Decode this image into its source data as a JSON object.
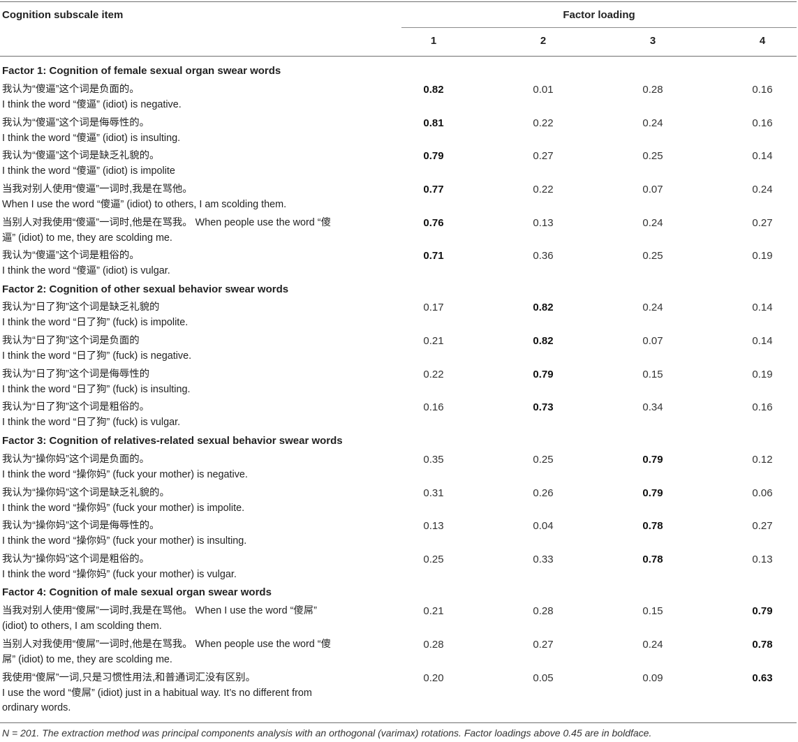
{
  "header": {
    "item_col": "Cognition subscale item",
    "loading_col": "Factor loading",
    "factor_numbers": [
      "1",
      "2",
      "3",
      "4"
    ]
  },
  "groups": [
    {
      "title": "Factor 1: Cognition of female sexual organ swear words",
      "rows": [
        {
          "lines": [
            "我认为“傻逼”这个词是负面的。",
            "I think the word “傻逼” (idiot) is negative."
          ],
          "values": [
            "0.82",
            "0.01",
            "0.28",
            "0.16"
          ],
          "bold": 0
        },
        {
          "lines": [
            "我认为“傻逼”这个词是侮辱性的。",
            "I think the word “傻逼” (idiot) is insulting."
          ],
          "values": [
            "0.81",
            "0.22",
            "0.24",
            "0.16"
          ],
          "bold": 0
        },
        {
          "lines": [
            "我认为“傻逼”这个词是缺乏礼貌的。",
            "I think the word “傻逼” (idiot) is impolite"
          ],
          "values": [
            "0.79",
            "0.27",
            "0.25",
            "0.14"
          ],
          "bold": 0
        },
        {
          "lines": [
            "当我对别人使用“傻逼”一词时,我是在骂他。",
            "When I use the word “傻逼” (idiot) to others, I am scolding them."
          ],
          "values": [
            "0.77",
            "0.22",
            "0.07",
            "0.24"
          ],
          "bold": 0
        },
        {
          "lines": [
            "当别人对我使用“傻逼”一词时,他是在骂我。 When people use the word “傻",
            "逼” (idiot) to me, they are scolding me."
          ],
          "values": [
            "0.76",
            "0.13",
            "0.24",
            "0.27"
          ],
          "bold": 0
        },
        {
          "lines": [
            "我认为“傻逼”这个词是粗俗的。",
            "I think the word “傻逼” (idiot) is vulgar."
          ],
          "values": [
            "0.71",
            "0.36",
            "0.25",
            "0.19"
          ],
          "bold": 0
        }
      ]
    },
    {
      "title": "Factor 2: Cognition of other sexual behavior swear words",
      "rows": [
        {
          "lines": [
            "我认为“日了狗”这个词是缺乏礼貌的",
            "I think the word “日了狗” (fuck) is impolite."
          ],
          "values": [
            "0.17",
            "0.82",
            "0.24",
            "0.14"
          ],
          "bold": 1
        },
        {
          "lines": [
            "我认为“日了狗”这个词是负面的",
            "I think the word “日了狗” (fuck) is negative."
          ],
          "values": [
            "0.21",
            "0.82",
            "0.07",
            "0.14"
          ],
          "bold": 1
        },
        {
          "lines": [
            "我认为“日了狗”这个词是侮辱性的",
            "I think the word “日了狗” (fuck) is insulting."
          ],
          "values": [
            "0.22",
            "0.79",
            "0.15",
            "0.19"
          ],
          "bold": 1
        },
        {
          "lines": [
            "我认为“日了狗”这个词是粗俗的。",
            "I think the word “日了狗” (fuck) is vulgar."
          ],
          "values": [
            "0.16",
            "0.73",
            "0.34",
            "0.16"
          ],
          "bold": 1
        }
      ]
    },
    {
      "title": "Factor 3: Cognition of relatives-related sexual behavior swear words",
      "rows": [
        {
          "lines": [
            "我认为“操你妈”这个词是负面的。",
            "I think the word “操你妈” (fuck your mother) is negative."
          ],
          "values": [
            "0.35",
            "0.25",
            "0.79",
            "0.12"
          ],
          "bold": 2
        },
        {
          "lines": [
            "我认为“操你妈”这个词是缺乏礼貌的。",
            "I think the word “操你妈” (fuck your mother) is impolite."
          ],
          "values": [
            "0.31",
            "0.26",
            "0.79",
            "0.06"
          ],
          "bold": 2
        },
        {
          "lines": [
            "我认为“操你妈”这个词是侮辱性的。",
            "I think the word “操你妈” (fuck your mother) is insulting."
          ],
          "values": [
            "0.13",
            "0.04",
            "0.78",
            "0.27"
          ],
          "bold": 2
        },
        {
          "lines": [
            "我认为“操你妈”这个词是粗俗的。",
            "I think the word “操你妈” (fuck your mother) is vulgar."
          ],
          "values": [
            "0.25",
            "0.33",
            "0.78",
            "0.13"
          ],
          "bold": 2
        }
      ]
    },
    {
      "title": "Factor 4: Cognition of male sexual organ swear words",
      "rows": [
        {
          "lines": [
            "当我对别人使用“傻屌”一词时,我是在骂他。 When I use the word “傻屌”",
            "(idiot) to others, I am scolding them."
          ],
          "values": [
            "0.21",
            "0.28",
            "0.15",
            "0.79"
          ],
          "bold": 3
        },
        {
          "lines": [
            "当别人对我使用“傻屌”一词时,他是在骂我。 When people use the word “傻",
            "屌” (idiot) to me, they are scolding me."
          ],
          "values": [
            "0.28",
            "0.27",
            "0.24",
            "0.78"
          ],
          "bold": 3
        },
        {
          "lines": [
            "我使用“傻屌”一词,只是习惯性用法,和普通词汇没有区别。",
            "I use the word “傻屌” (idiot) just in a habitual way. It’s no different from",
            "ordinary words."
          ],
          "values": [
            "0.20",
            "0.05",
            "0.09",
            "0.63"
          ],
          "bold": 3
        }
      ]
    }
  ],
  "note": "N = 201. The extraction method was principal components analysis with an orthogonal (varimax) rotations. Factor loadings above 0.45 are in boldface."
}
